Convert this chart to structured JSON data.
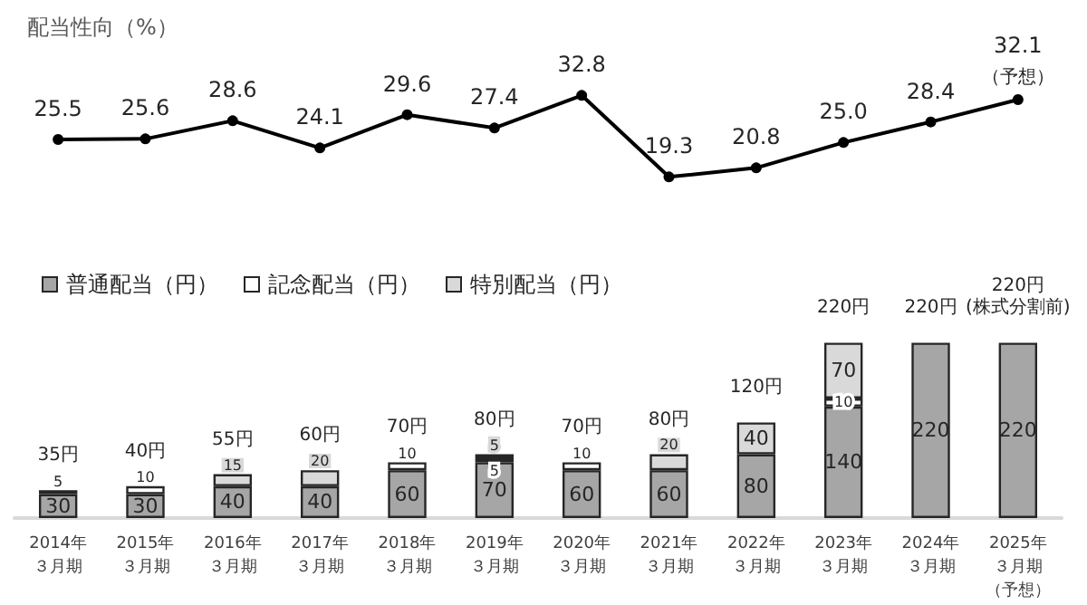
{
  "chart_data": [
    {
      "type": "line",
      "title": "配当性向（%）",
      "categories": [
        "2014年３月期",
        "2015年３月期",
        "2016年３月期",
        "2017年３月期",
        "2018年３月期",
        "2019年３月期",
        "2020年３月期",
        "2021年３月期",
        "2022年３月期",
        "2023年３月期",
        "2024年３月期",
        "2025年３月期（予想）"
      ],
      "values": [
        25.5,
        25.6,
        28.6,
        24.1,
        29.6,
        27.4,
        32.8,
        19.3,
        20.8,
        25.0,
        28.4,
        32.1
      ],
      "value_labels": [
        "25.5",
        "25.6",
        "28.6",
        "24.1",
        "29.6",
        "27.4",
        "32.8",
        "19.3",
        "20.8",
        "25.0",
        "28.4",
        "32.1"
      ],
      "color": "#000000",
      "marker": "circle",
      "tick_labels": false,
      "legend": false,
      "annotations": [
        {
          "text": "（予想）",
          "x": "2025年３月期（予想）",
          "y": 32.1
        }
      ]
    },
    {
      "type": "bar",
      "stacked": true,
      "data_labels": true,
      "legend": "top left",
      "categories": [
        "2014年３月期",
        "2015年３月期",
        "2016年３月期",
        "2017年３月期",
        "2018年３月期",
        "2019年３月期",
        "2020年３月期",
        "2021年３月期",
        "2022年３月期",
        "2023年３月期",
        "2024年３月期",
        "2025年３月期（予想）"
      ],
      "series": [
        {
          "name": "普通配当（円）",
          "color": "#a6a6a6",
          "values": [
            30,
            30,
            40,
            40,
            60,
            70,
            60,
            60,
            80,
            140,
            220,
            220
          ]
        },
        {
          "name": "記念配当（円）",
          "color": "#ffffff",
          "values": [
            5,
            10,
            null,
            null,
            10,
            5,
            10,
            null,
            null,
            10,
            null,
            null
          ]
        },
        {
          "name": "特別配当（円）",
          "color": "#d9d9d9",
          "values": [
            null,
            null,
            15,
            20,
            null,
            5,
            null,
            20,
            40,
            70,
            null,
            null
          ]
        }
      ],
      "totals": [
        "35円",
        "40円",
        "55円",
        "60円",
        "70円",
        "80円",
        "70円",
        "80円",
        "120円",
        "220円",
        "220円",
        "220円\n(株式分割前)"
      ]
    }
  ]
}
